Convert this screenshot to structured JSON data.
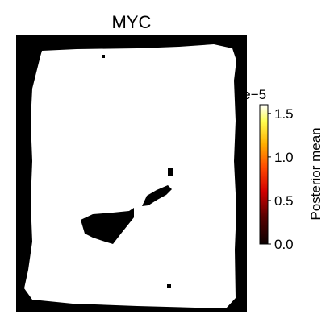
{
  "chart_data": {
    "type": "heatmap",
    "title": "MYC",
    "colorbar": {
      "label": "Posterior mean",
      "scale_multiplier": "1e−5",
      "range": [
        0,
        1.6
      ],
      "ticks": [
        "0.0",
        "0.5",
        "1.0",
        "1.5"
      ],
      "tick_values": [
        0.0,
        0.5,
        1.0,
        1.5
      ],
      "colormap": "hot"
    },
    "axes_visible": false,
    "background_value": 0.0,
    "tissue_value": 1.6,
    "colors": {
      "background": "#000000",
      "tissue": "#ffffff"
    }
  }
}
